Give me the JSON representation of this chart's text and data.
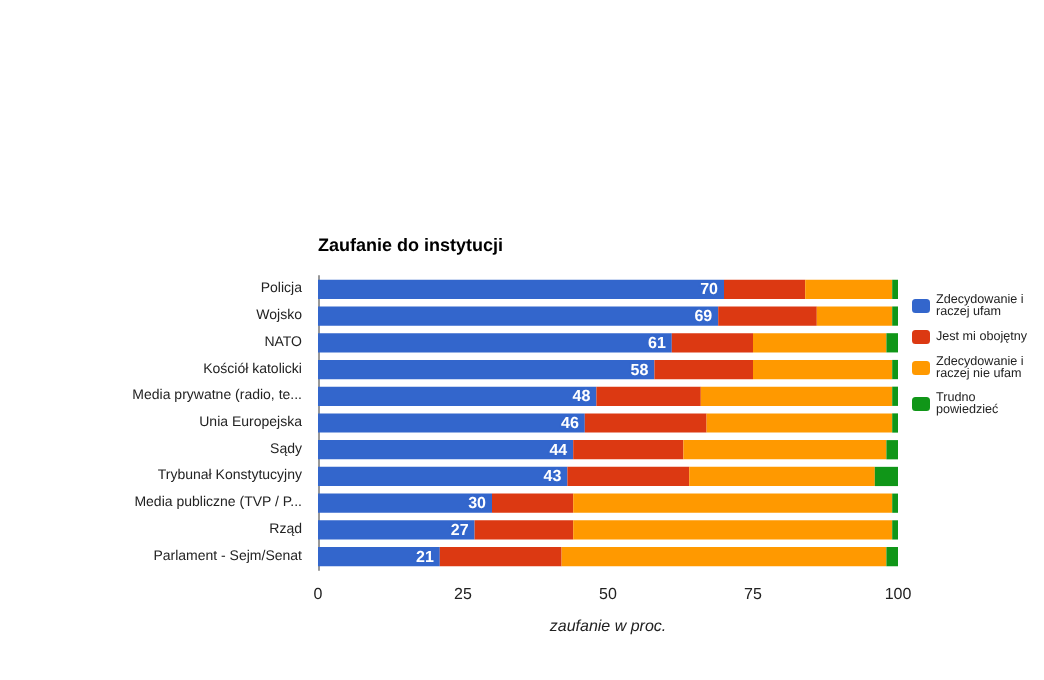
{
  "chart_data": {
    "type": "bar",
    "orientation": "horizontal",
    "stacked": true,
    "title": "Zaufanie do instytucji",
    "xlabel": "zaufanie w proc.",
    "categories": [
      "Policja",
      "Wojsko",
      "NATO",
      "Kościół katolicki",
      "Media prywatne (radio, te...",
      "Unia Europejska",
      "Sądy",
      "Trybunał Konstytucyjny",
      "Media publiczne (TVP / P...",
      "Rząd",
      "Parlament - Sejm/Senat"
    ],
    "series": [
      {
        "name": "Zdecydowanie i raczej ufam",
        "color": "#3366cc",
        "values": [
          70,
          69,
          61,
          58,
          48,
          46,
          44,
          43,
          30,
          27,
          21
        ],
        "value_labels": [
          "70",
          "69",
          "61",
          "58",
          "48",
          "46",
          "44",
          "43",
          "30",
          "27",
          "21"
        ]
      },
      {
        "name": "Jest mi obojętny",
        "color": "#dc3912",
        "values": [
          14,
          17,
          14,
          17,
          18,
          21,
          19,
          21,
          14,
          17,
          21
        ]
      },
      {
        "name": "Zdecydowanie i raczej nie ufam",
        "color": "#ff9900",
        "values": [
          15,
          13,
          23,
          24,
          33,
          32,
          35,
          32,
          55,
          55,
          56
        ]
      },
      {
        "name": "Trudno powiedzieć",
        "color": "#109618",
        "values": [
          1,
          1,
          2,
          1,
          1,
          1,
          2,
          4,
          1,
          1,
          2
        ]
      }
    ],
    "xlim": [
      0,
      100
    ],
    "xticks": [
      0,
      25,
      50,
      75,
      100
    ],
    "grid": false,
    "legend": "right"
  }
}
